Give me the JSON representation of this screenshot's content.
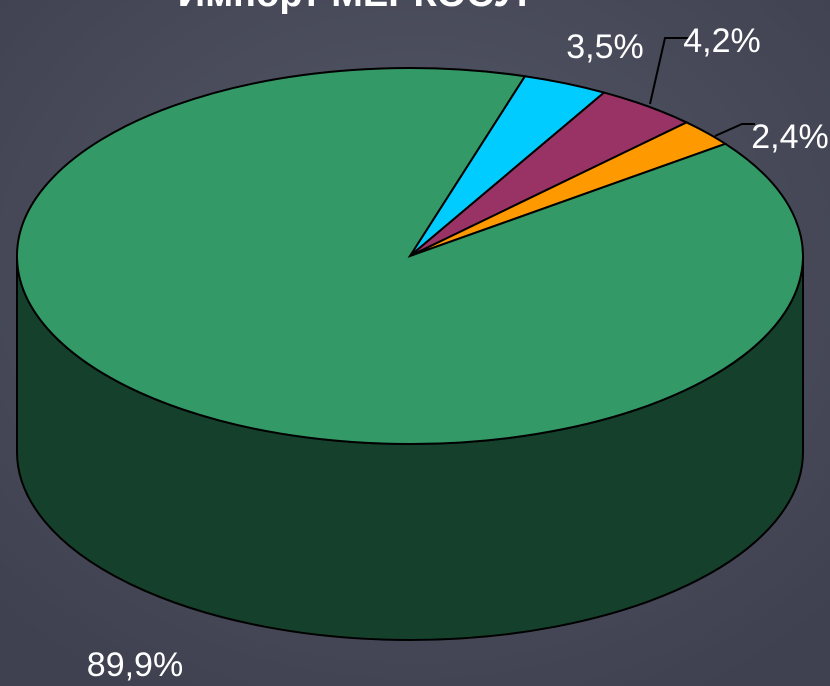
{
  "chart_data": {
    "type": "pie",
    "title": "Импорт МЕРКОСУР",
    "values": [
      3.5,
      4.2,
      2.4,
      89.9
    ],
    "value_labels": [
      "3,5%",
      "4,2%",
      "2,4%",
      "89,9%"
    ],
    "colors": [
      "#00ccff",
      "#993366",
      "#ff9900",
      "#339966"
    ]
  }
}
